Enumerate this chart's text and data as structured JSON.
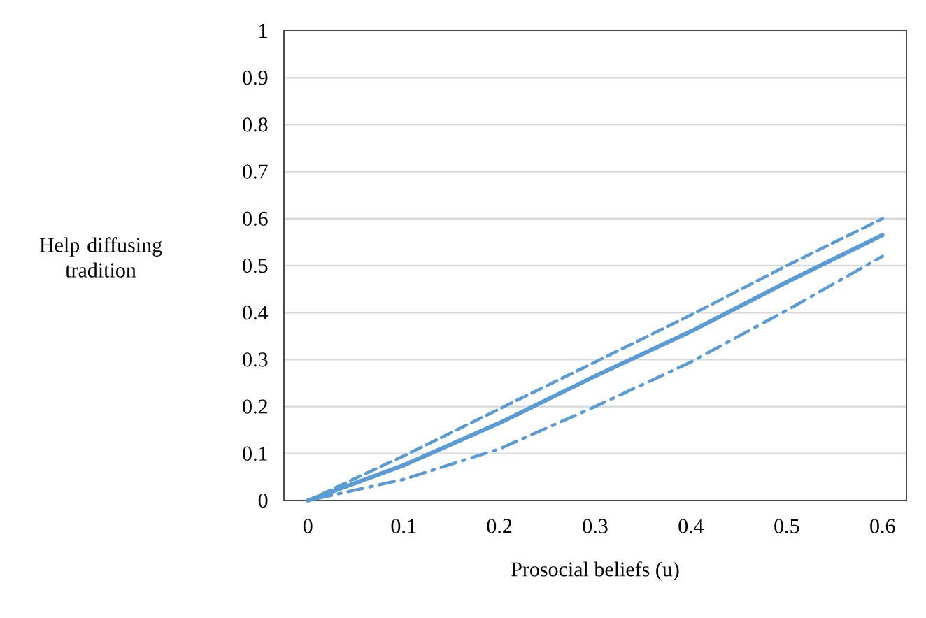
{
  "chart_data": {
    "type": "line",
    "xlabel": "Prosocial beliefs (u)",
    "ylabel": "Help diffusing tradition",
    "x": [
      0,
      0.1,
      0.2,
      0.3,
      0.4,
      0.5,
      0.6
    ],
    "series": [
      {
        "color": "#5b9bd5",
        "line_style": "solid",
        "values": [
          0,
          0.075,
          0.165,
          0.265,
          0.36,
          0.465,
          0.565
        ]
      },
      {
        "color": "#5b9bd5",
        "line_style": "dashed",
        "values": [
          0,
          0.095,
          0.195,
          0.295,
          0.395,
          0.5,
          0.6
        ]
      },
      {
        "color": "#5b9bd5",
        "line_style": "dashdot",
        "values": [
          0,
          0.045,
          0.11,
          0.2,
          0.295,
          0.405,
          0.52
        ]
      }
    ],
    "xlim": [
      -0.025,
      0.625
    ],
    "ylim": [
      0,
      1
    ],
    "xticks": [
      0,
      0.1,
      0.2,
      0.3,
      0.4,
      0.5,
      0.6
    ],
    "yticks": [
      0,
      0.1,
      0.2,
      0.3,
      0.4,
      0.5,
      0.6,
      0.7,
      0.8,
      0.9,
      1
    ],
    "grid": "y",
    "marker": "none"
  }
}
